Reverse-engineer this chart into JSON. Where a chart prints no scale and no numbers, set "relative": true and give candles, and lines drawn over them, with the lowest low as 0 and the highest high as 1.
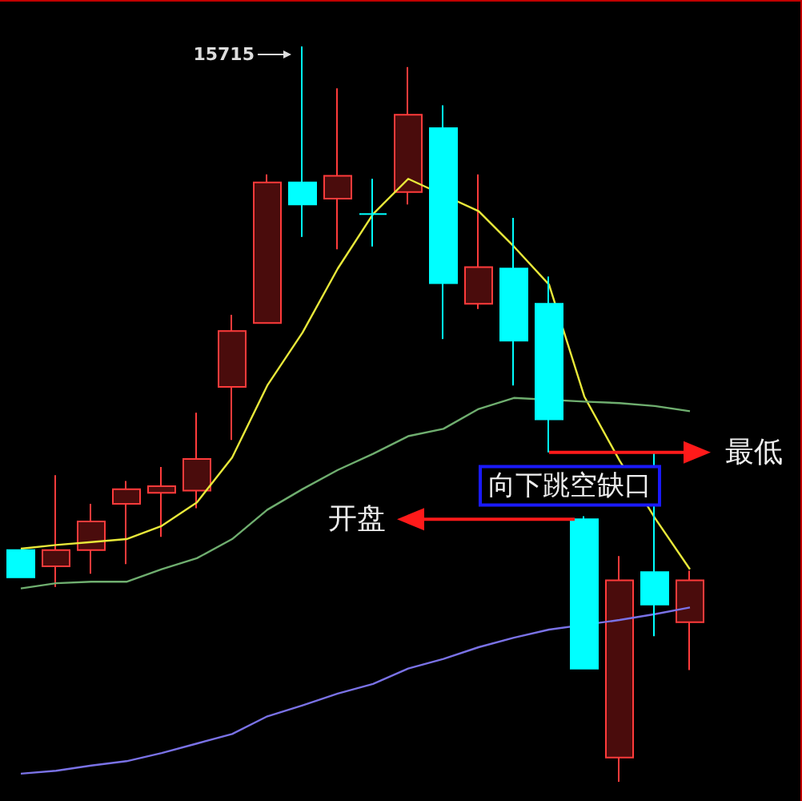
{
  "chart_data": {
    "type": "candlestick",
    "relative": true,
    "categories": [
      null,
      null,
      null,
      null,
      null,
      null,
      null,
      null,
      null,
      null,
      null,
      null,
      null,
      null,
      null,
      null,
      null,
      null,
      null,
      null
    ],
    "ohlc": [
      [
        0.315,
        0.315,
        0.278,
        0.278
      ],
      [
        0.293,
        0.417,
        0.265,
        0.315
      ],
      [
        0.315,
        0.378,
        0.283,
        0.354
      ],
      [
        0.378,
        0.409,
        0.296,
        0.398
      ],
      [
        0.393,
        0.428,
        0.333,
        0.402
      ],
      [
        0.396,
        0.502,
        0.372,
        0.439
      ],
      [
        0.537,
        0.635,
        0.465,
        0.613
      ],
      [
        0.624,
        0.826,
        0.624,
        0.815
      ],
      [
        0.815,
        1,
        0.741,
        0.785
      ],
      [
        0.793,
        0.943,
        0.724,
        0.824
      ],
      [
        0.772,
        0.82,
        0.728,
        0.772
      ],
      [
        0.802,
        0.972,
        0.785,
        0.907
      ],
      [
        0.889,
        0.92,
        0.602,
        0.678
      ],
      [
        0.65,
        0.826,
        0.643,
        0.7
      ],
      [
        0.698,
        0.767,
        0.539,
        0.6
      ],
      [
        0.65,
        0.687,
        0.448,
        0.493
      ],
      [
        0.357,
        0.361,
        0.154,
        0.154
      ],
      [
        0.033,
        0.307,
        0,
        0.274
      ],
      [
        0.285,
        0.448,
        0.198,
        0.241
      ],
      [
        0.217,
        0.287,
        0.152,
        0.274
      ]
    ],
    "series": [
      {
        "type": "line",
        "color": "#e8e83a",
        "values": [
          0.317,
          0.322,
          0.326,
          0.33,
          0.348,
          0.38,
          0.441,
          0.539,
          0.611,
          0.698,
          0.772,
          0.82,
          null,
          0.776,
          0.728,
          0.676,
          0.524,
          0.437,
          0.359,
          0.289
        ]
      },
      {
        "type": "line",
        "color": "#6fae6f",
        "values": [
          0.263,
          0.27,
          0.272,
          0.272,
          0.289,
          0.304,
          0.33,
          0.37,
          0.398,
          0.424,
          0.446,
          0.47,
          0.48,
          0.507,
          0.522,
          null,
          0.517,
          0.515,
          0.511,
          0.504
        ]
      },
      {
        "type": "line",
        "color": "#7a72e6",
        "values": [
          0.011,
          0.015,
          0.022,
          0.028,
          0.039,
          0.052,
          0.065,
          0.089,
          0.104,
          0.12,
          0.133,
          0.154,
          0.167,
          0.183,
          0.196,
          0.207,
          null,
          0.22,
          0.228,
          0.237
        ]
      }
    ],
    "annotations": [
      "15715",
      "最低",
      "开盘",
      "向下跳空缺口"
    ],
    "marker": "none"
  }
}
